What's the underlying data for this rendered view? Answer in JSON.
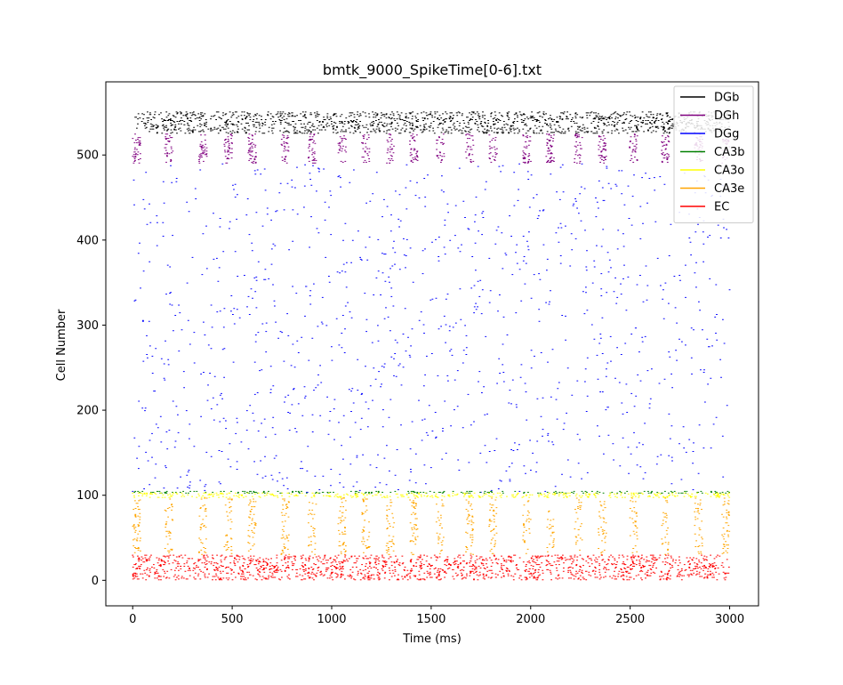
{
  "chart_data": {
    "type": "scatter",
    "title": "bmtk_9000_SpikeTime[0-6].txt",
    "xlabel": "Time (ms)",
    "ylabel": "Cell Number",
    "xlim": [
      -135,
      3145
    ],
    "ylim": [
      -30,
      586
    ],
    "x_ticks": [
      0,
      500,
      1000,
      1500,
      2000,
      2500,
      3000
    ],
    "y_ticks": [
      0,
      100,
      200,
      300,
      400,
      500
    ],
    "time_range": [
      0,
      3000
    ],
    "grid": false,
    "legend_position": "upper right",
    "marker": "short horizontal dash",
    "series": [
      {
        "name": "DGb",
        "color": "#000000",
        "cells": [
          525,
          551
        ],
        "spikes_per_cell": 60,
        "pattern": "dense"
      },
      {
        "name": "DGh",
        "color": "#800080",
        "cells": [
          490,
          525
        ],
        "spikes_per_cell": 22,
        "pattern": "bursts"
      },
      {
        "name": "DGg",
        "color": "#0000ff",
        "cells": [
          103,
          490
        ],
        "spikes_per_cell": 3,
        "pattern": "sparse"
      },
      {
        "name": "CA3b",
        "color": "#008000",
        "cells": [
          102,
          105
        ],
        "spikes_per_cell": 70,
        "pattern": "dense"
      },
      {
        "name": "CA3o",
        "color": "#ffff00",
        "cells": [
          97,
          103
        ],
        "spikes_per_cell": 70,
        "pattern": "dense"
      },
      {
        "name": "CA3e",
        "color": "#ffa500",
        "cells": [
          30,
          97
        ],
        "spikes_per_cell": 12,
        "pattern": "bursts"
      },
      {
        "name": "EC",
        "color": "#ff0000",
        "cells": [
          0,
          30
        ],
        "spikes_per_cell": 55,
        "pattern": "dense"
      }
    ]
  }
}
